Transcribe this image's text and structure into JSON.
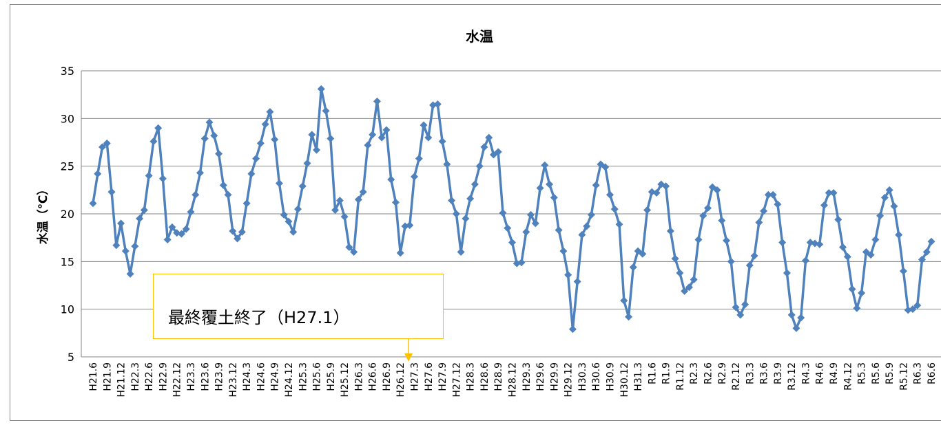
{
  "chart_data": {
    "type": "line",
    "title": "水温",
    "y_label": "水温（℃）",
    "annotation": "最終覆土終了（H27.1）",
    "color": "#4f81bd",
    "grid": true,
    "ylim": [
      5,
      35
    ],
    "yticks": [
      5,
      10,
      15,
      20,
      25,
      30,
      35
    ],
    "categories": [
      "H21.6",
      null,
      null,
      "H21.9",
      null,
      null,
      "H21.12",
      null,
      null,
      "H22.3",
      null,
      null,
      "H22.6",
      null,
      null,
      "H22.9",
      null,
      null,
      "H22.12",
      null,
      null,
      "H23.3",
      null,
      null,
      "H23.6",
      null,
      null,
      "H23.9",
      null,
      null,
      "H23.12",
      null,
      null,
      "H24.3",
      null,
      null,
      "H24.6",
      null,
      null,
      "H24.9",
      null,
      null,
      "H24.12",
      null,
      null,
      "H25.3",
      null,
      null,
      "H25.6",
      null,
      null,
      "H25.9",
      null,
      null,
      "H25.12",
      null,
      null,
      "H26.3",
      null,
      null,
      "H26.6",
      null,
      null,
      "H26.9",
      null,
      null,
      "H26.12",
      null,
      null,
      "H27.3",
      null,
      null,
      "H27.6",
      null,
      null,
      "H27.9",
      null,
      null,
      "H27.12",
      null,
      null,
      "H28.3",
      null,
      null,
      "H28.6",
      null,
      null,
      "H28.9",
      null,
      null,
      "H28.12",
      null,
      null,
      "H29.3",
      null,
      null,
      "H29.6",
      null,
      null,
      "H29.9",
      null,
      null,
      "H29.12",
      null,
      null,
      "H30.3",
      null,
      null,
      "H30.6",
      null,
      null,
      "H30.9",
      null,
      null,
      "H30.12",
      null,
      null,
      "H31.3",
      null,
      null,
      "R1.6",
      null,
      null,
      "R1.9",
      null,
      null,
      "R1.12",
      null,
      null,
      "R2.3",
      null,
      null,
      "R2.6",
      null,
      null,
      "R2.9",
      null,
      null,
      "R2.12",
      null,
      null,
      "R3.3",
      null,
      null,
      "R3.6",
      null,
      null,
      "R3.9",
      null,
      null,
      "R3.12",
      null,
      null,
      "R4.3",
      null,
      null,
      "R4.6",
      null,
      null,
      "R4.9",
      null,
      null,
      "R4.12",
      null,
      null,
      "R5.3",
      null,
      null,
      "R5.6",
      null,
      null,
      "R5.9",
      null,
      null,
      "R5.12",
      null,
      null,
      "R6.3",
      null,
      null,
      "R6.6"
    ],
    "values": [
      21.1,
      24.2,
      27.0,
      27.4,
      22.3,
      16.7,
      19.0,
      16.1,
      13.7,
      16.6,
      19.5,
      20.4,
      24.0,
      27.6,
      29.0,
      23.7,
      17.3,
      18.6,
      18.0,
      17.9,
      18.4,
      20.2,
      22.0,
      24.3,
      27.9,
      29.6,
      28.2,
      26.3,
      23.0,
      22.0,
      18.2,
      17.4,
      18.1,
      21.1,
      24.2,
      25.8,
      27.4,
      29.4,
      30.7,
      27.8,
      23.2,
      19.9,
      19.2,
      18.1,
      20.5,
      22.9,
      25.3,
      28.3,
      26.7,
      33.1,
      30.8,
      27.9,
      20.4,
      21.4,
      19.7,
      16.5,
      16.0,
      21.5,
      22.3,
      27.2,
      28.3,
      31.8,
      28.0,
      28.8,
      23.6,
      21.2,
      15.9,
      18.7,
      18.8,
      23.9,
      25.8,
      29.3,
      28.0,
      31.4,
      31.5,
      27.6,
      25.2,
      21.4,
      20.0,
      16.0,
      19.5,
      21.6,
      23.1,
      25.0,
      27.0,
      28.0,
      26.2,
      26.5,
      20.1,
      18.5,
      17.0,
      14.8,
      14.9,
      18.1,
      19.9,
      19.0,
      22.7,
      25.1,
      23.1,
      21.7,
      18.3,
      16.1,
      13.6,
      7.9,
      12.9,
      17.8,
      18.7,
      19.9,
      23.0,
      25.2,
      24.9,
      22.0,
      20.5,
      18.9,
      10.9,
      9.2,
      14.4,
      16.1,
      15.8,
      20.4,
      22.3,
      22.2,
      23.1,
      22.9,
      18.2,
      15.3,
      13.8,
      11.9,
      12.3,
      13.1,
      17.3,
      19.8,
      20.6,
      22.8,
      22.5,
      19.3,
      17.2,
      15.0,
      10.2,
      9.4,
      10.5,
      14.6,
      15.6,
      19.1,
      20.3,
      22.0,
      22.0,
      21.0,
      17.0,
      13.8,
      9.4,
      8.0,
      9.1,
      15.1,
      17.0,
      16.9,
      16.8,
      20.9,
      22.2,
      22.2,
      19.4,
      16.5,
      15.5,
      12.1,
      10.1,
      11.7,
      16.0,
      15.7,
      17.3,
      19.8,
      21.7,
      22.5,
      20.8,
      17.8,
      14.0,
      9.9,
      10.0,
      10.4,
      15.2,
      16.0,
      17.1
    ]
  }
}
